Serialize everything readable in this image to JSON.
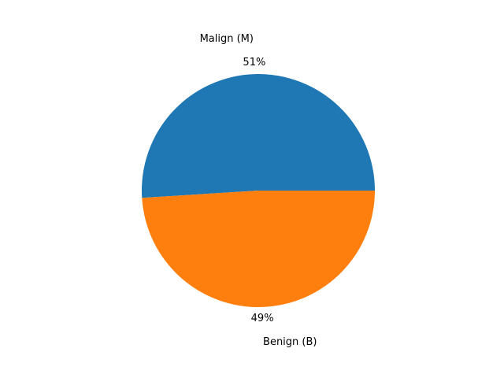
{
  "chart_data": {
    "type": "pie",
    "labels": [
      "Malign (M)",
      "Benign (B)"
    ],
    "values": [
      51,
      49
    ],
    "pct_labels": [
      "51%",
      "49%"
    ],
    "colors": [
      "#1f77b4",
      "#ff7f0e"
    ],
    "start_angle_deg": 0,
    "direction": "counterclockwise",
    "legend": "none"
  }
}
